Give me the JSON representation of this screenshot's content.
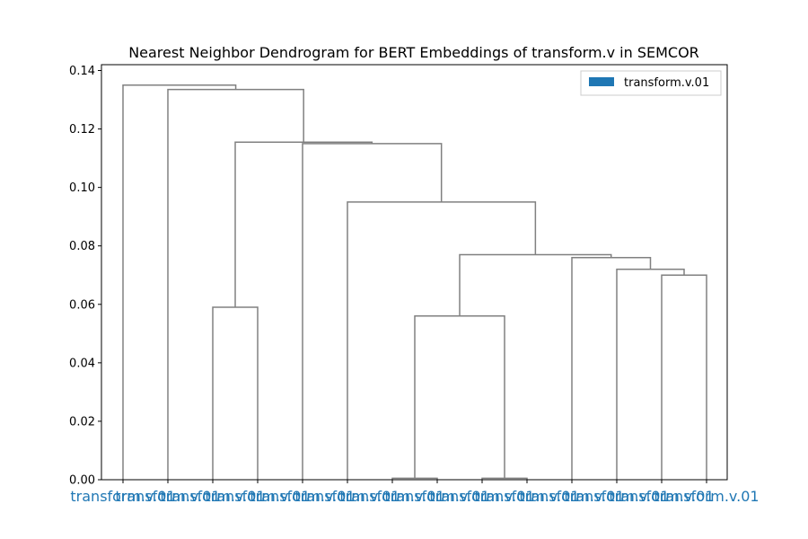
{
  "chart_data": {
    "type": "dendrogram",
    "title": "Nearest Neighbor Dendrogram for BERT Embeddings of transform.v in SEMCOR",
    "xlabel": "",
    "ylabel": "",
    "ylim": [
      0.0,
      0.142
    ],
    "yticks": [
      "0.00",
      "0.02",
      "0.04",
      "0.06",
      "0.08",
      "0.10",
      "0.12",
      "0.14"
    ],
    "leaf_labels": [
      "transform.v.01",
      "transform.v.01",
      "transform.v.01",
      "transform.v.01",
      "transform.v.01",
      "transform.v.01",
      "transform.v.01",
      "transform.v.01",
      "transform.v.01",
      "transform.v.01",
      "transform.v.01",
      "transform.v.01",
      "transform.v.01",
      "transform.v.01"
    ],
    "leaf_label_color": "#1f77b4",
    "link_color": "#808080",
    "legend": {
      "entries": [
        {
          "label": "transform.v.01",
          "color": "#1f77b4"
        }
      ],
      "placement": "top-right"
    },
    "merges": [
      {
        "left": "L8",
        "right": "L9",
        "height": 0.0005
      },
      {
        "left": "L10",
        "right": "L11",
        "height": 0.0005
      },
      {
        "left": "L13",
        "right": "L14",
        "height": 0.07
      },
      {
        "left": "L12",
        "right": "M3",
        "height": 0.072
      },
      {
        "left": "L11b",
        "right": "M4",
        "height": 0.076
      },
      {
        "left": "M1",
        "right": "M2",
        "height": 0.056
      },
      {
        "left": "M6",
        "right": "M5",
        "height": 0.077
      },
      {
        "left": "L7",
        "right": "M7",
        "height": 0.095
      },
      {
        "left": "L6",
        "right": "M8",
        "height": 0.115
      },
      {
        "left": "L4",
        "right": "L5",
        "height": 0.059
      },
      {
        "left": "M10",
        "right": "M9",
        "height": 0.1155
      },
      {
        "left": "L3",
        "right": "M11",
        "height": 0.1335
      },
      {
        "left": "L1",
        "right": "M12",
        "height": 0.135
      }
    ]
  }
}
